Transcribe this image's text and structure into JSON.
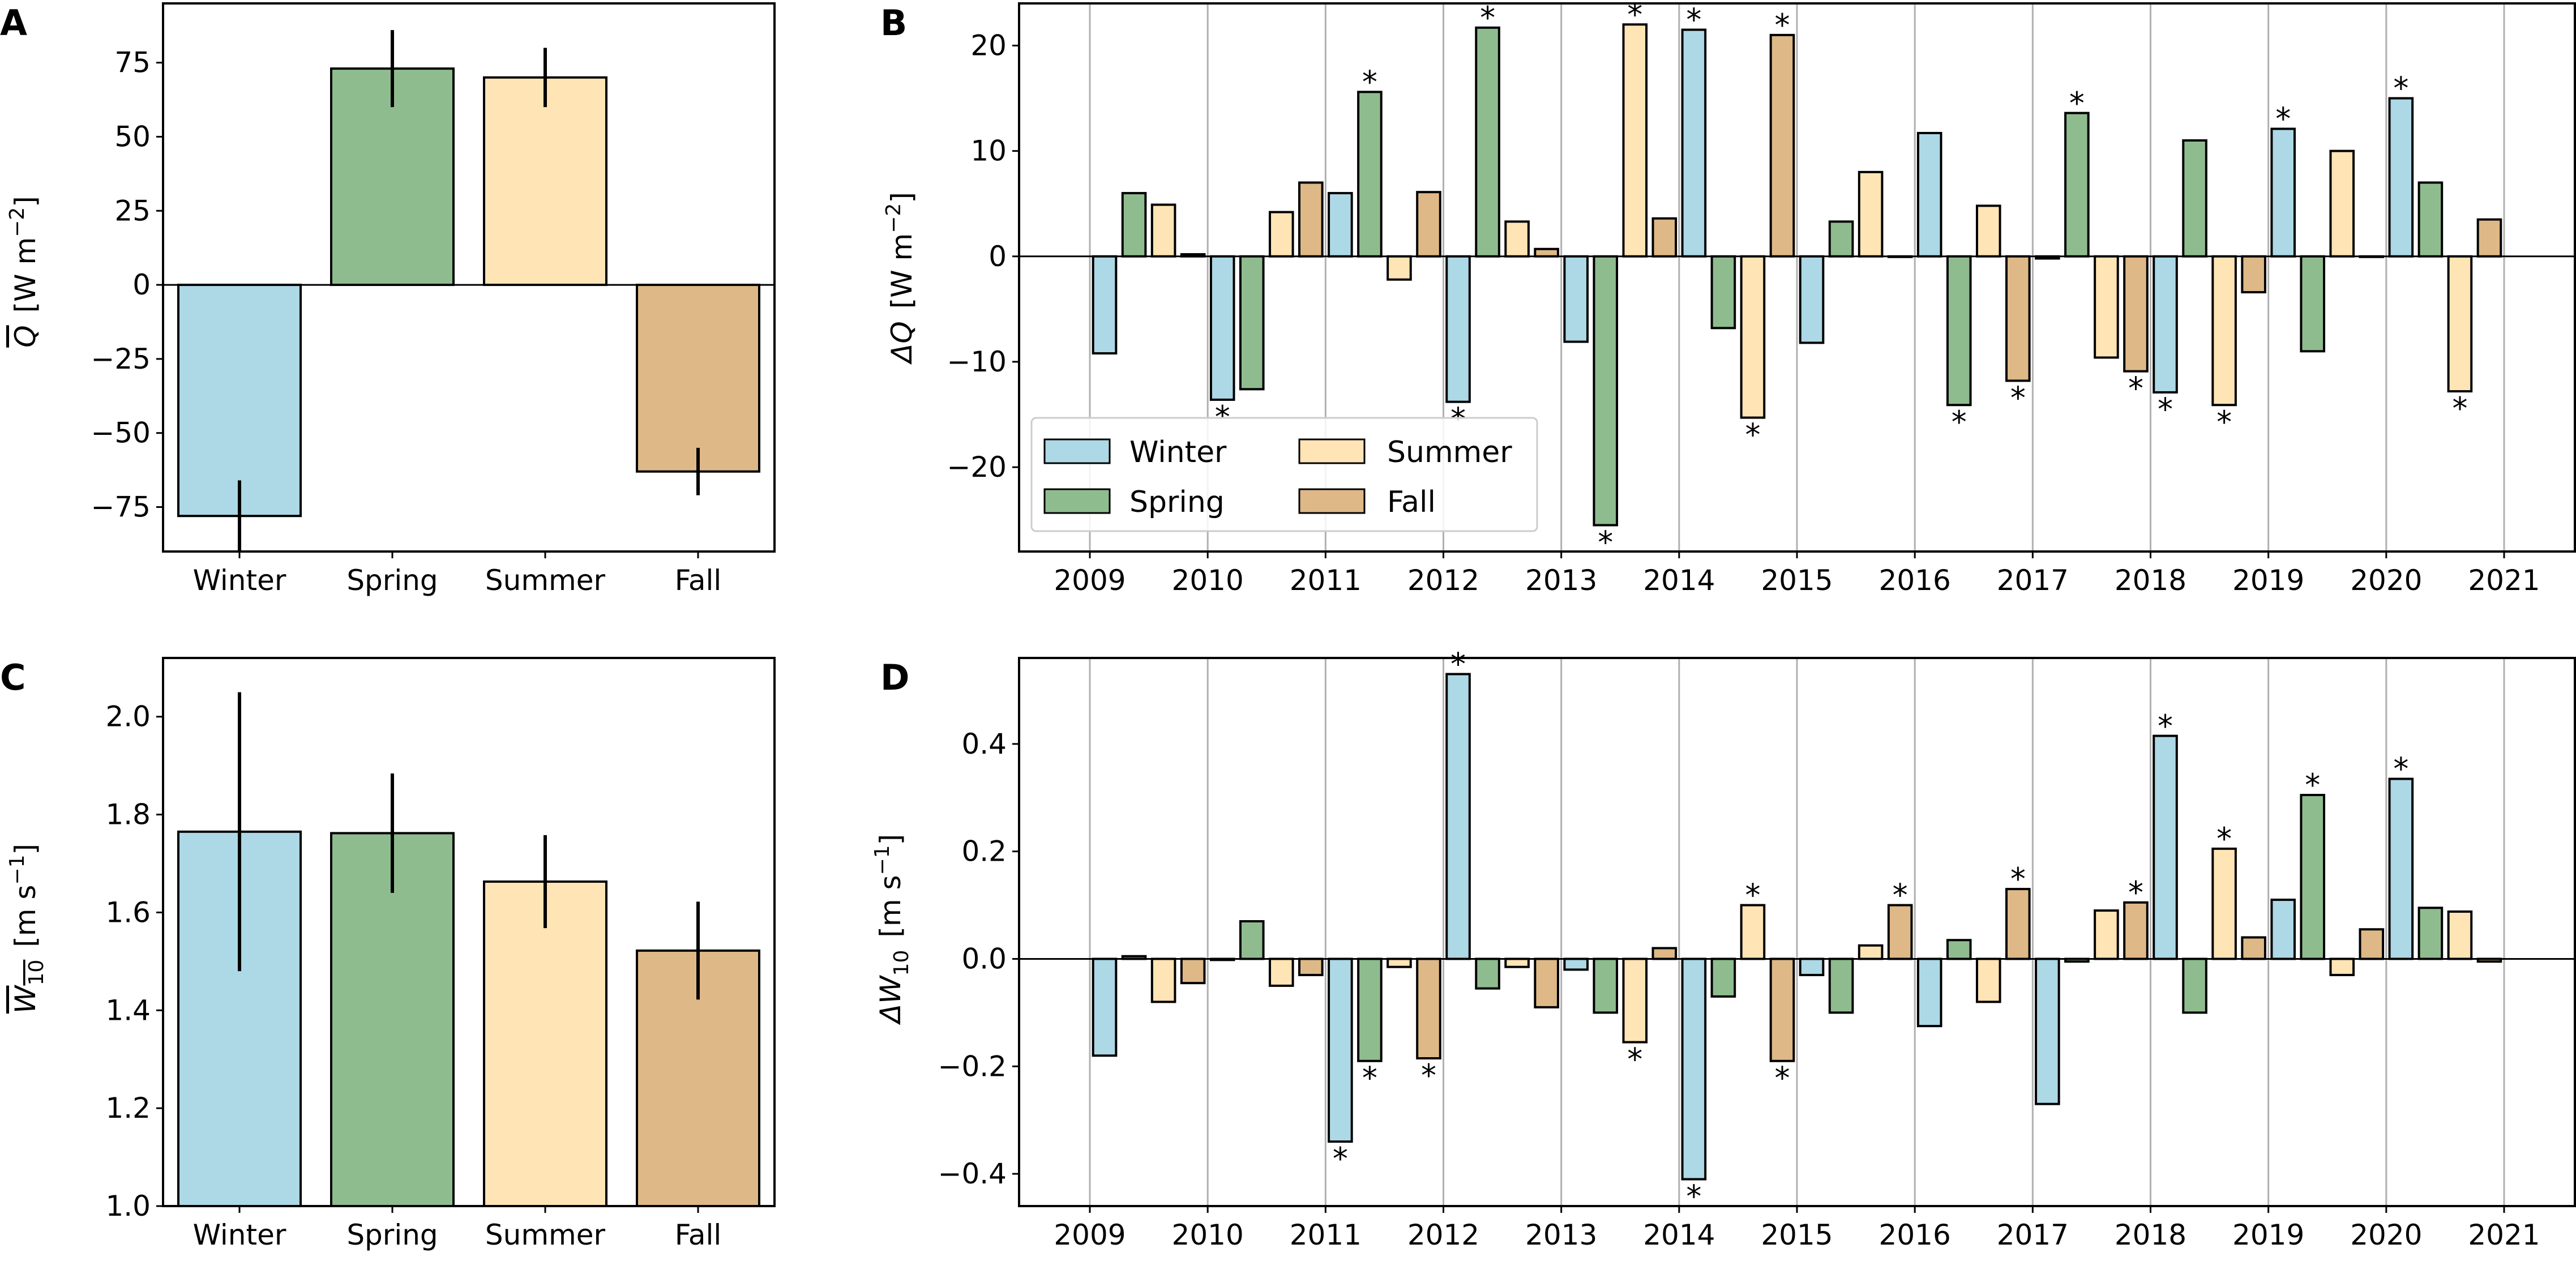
{
  "colors": {
    "Winter": "#add8e6",
    "Spring": "#8fbc8f",
    "Summer": "#ffe4b5",
    "Fall": "#deb887",
    "grid": "#b0b0b0",
    "edge": "#000000"
  },
  "chart_data": [
    {
      "panel": "A",
      "type": "bar",
      "categories": [
        "Winter",
        "Spring",
        "Summer",
        "Fall"
      ],
      "values": [
        -78,
        73,
        70,
        -63
      ],
      "errors": [
        12,
        13,
        10,
        8
      ],
      "ylabel_parts": [
        "Q",
        "[W m",
        "−2",
        "]"
      ],
      "ylim": [
        -90,
        95
      ],
      "yticks": [
        -75,
        -50,
        -25,
        0,
        25,
        50,
        75
      ],
      "ytick_labels": [
        "−75",
        "−50",
        "−25",
        "0",
        "25",
        "50",
        "75"
      ],
      "grid": false
    },
    {
      "panel": "B",
      "type": "bar",
      "series_names": [
        "Winter",
        "Spring",
        "Summer",
        "Fall"
      ],
      "years": [
        "2009",
        "2010",
        "2011",
        "2012",
        "2013",
        "2014",
        "2015",
        "2016",
        "2017",
        "2018",
        "2019",
        "2020",
        "2021"
      ],
      "values": [
        [
          -9.2,
          6.0,
          4.9,
          0.2
        ],
        [
          -13.6,
          -12.6,
          4.2,
          7.0
        ],
        [
          6.0,
          15.6,
          -2.2,
          6.1
        ],
        [
          -13.8,
          21.7,
          3.3,
          0.7
        ],
        [
          -8.1,
          -25.5,
          22.0,
          3.6
        ],
        [
          21.5,
          -6.8,
          -15.3,
          21.0
        ],
        [
          -8.2,
          3.3,
          8.0,
          0.0
        ],
        [
          11.7,
          -14.1,
          4.8,
          -11.8
        ],
        [
          -0.2,
          13.6,
          -9.6,
          -10.9
        ],
        [
          -12.9,
          11.0,
          -14.1,
          -3.4
        ],
        [
          12.1,
          -9.0,
          10.0,
          0.0
        ],
        [
          15.0,
          7.0,
          -12.8,
          3.5
        ],
        [
          0,
          0,
          0,
          0
        ]
      ],
      "significant": [
        [
          false,
          false,
          false,
          false
        ],
        [
          true,
          false,
          false,
          false
        ],
        [
          false,
          true,
          false,
          false
        ],
        [
          true,
          true,
          false,
          false
        ],
        [
          false,
          true,
          true,
          false
        ],
        [
          true,
          false,
          true,
          true
        ],
        [
          false,
          false,
          false,
          false
        ],
        [
          false,
          true,
          false,
          true
        ],
        [
          false,
          true,
          false,
          true
        ],
        [
          true,
          false,
          true,
          false
        ],
        [
          true,
          false,
          false,
          false
        ],
        [
          true,
          false,
          true,
          false
        ],
        [
          false,
          false,
          false,
          false
        ]
      ],
      "star_symbol": "*",
      "ylabel_parts": [
        "ΔQ",
        "[W m",
        "−2",
        "]"
      ],
      "ylim": [
        -28,
        24
      ],
      "yticks": [
        -20,
        -10,
        0,
        10,
        20
      ],
      "ytick_labels": [
        "−20",
        "−10",
        "0",
        "10",
        "20"
      ],
      "grid": true,
      "legend": {
        "placement": "lower-left",
        "entries": [
          "Winter",
          "Spring",
          "Summer",
          "Fall"
        ]
      }
    },
    {
      "panel": "C",
      "type": "bar",
      "categories": [
        "Winter",
        "Spring",
        "Summer",
        "Fall"
      ],
      "values": [
        1.765,
        1.762,
        1.663,
        1.522
      ],
      "errors": [
        0.285,
        0.122,
        0.095,
        0.1
      ],
      "ylabel_parts": [
        "W",
        "10",
        "[m s",
        "−1",
        "]"
      ],
      "ylim": [
        1.0,
        2.12
      ],
      "yticks": [
        1.0,
        1.2,
        1.4,
        1.6,
        1.8,
        2.0
      ],
      "ytick_labels": [
        "1.0",
        "1.2",
        "1.4",
        "1.6",
        "1.8",
        "2.0"
      ],
      "grid": false
    },
    {
      "panel": "D",
      "type": "bar",
      "series_names": [
        "Winter",
        "Spring",
        "Summer",
        "Fall"
      ],
      "years": [
        "2009",
        "2010",
        "2011",
        "2012",
        "2013",
        "2014",
        "2015",
        "2016",
        "2017",
        "2018",
        "2019",
        "2020",
        "2021"
      ],
      "values": [
        [
          -0.18,
          0.005,
          -0.08,
          -0.045
        ],
        [
          -0.002,
          0.07,
          -0.05,
          -0.03
        ],
        [
          -0.34,
          -0.19,
          -0.015,
          -0.185
        ],
        [
          0.53,
          -0.055,
          -0.015,
          -0.09
        ],
        [
          -0.02,
          -0.1,
          -0.155,
          0.02
        ],
        [
          -0.41,
          -0.07,
          0.1,
          -0.19
        ],
        [
          -0.03,
          -0.1,
          0.025,
          0.1
        ],
        [
          -0.125,
          0.035,
          -0.08,
          0.13
        ],
        [
          -0.27,
          -0.005,
          0.09,
          0.105
        ],
        [
          0.415,
          -0.1,
          0.205,
          0.04
        ],
        [
          0.11,
          0.305,
          -0.03,
          0.055
        ],
        [
          0.335,
          0.095,
          0.088,
          -0.005
        ],
        [
          0,
          0,
          0,
          0
        ]
      ],
      "significant": [
        [
          false,
          false,
          false,
          false
        ],
        [
          false,
          false,
          false,
          false
        ],
        [
          true,
          true,
          false,
          true
        ],
        [
          true,
          false,
          false,
          false
        ],
        [
          false,
          false,
          true,
          false
        ],
        [
          true,
          false,
          true,
          true
        ],
        [
          false,
          false,
          false,
          true
        ],
        [
          false,
          false,
          false,
          true
        ],
        [
          false,
          false,
          false,
          true
        ],
        [
          true,
          false,
          true,
          false
        ],
        [
          false,
          true,
          false,
          false
        ],
        [
          true,
          false,
          false,
          false
        ],
        [
          false,
          false,
          false,
          false
        ]
      ],
      "star_symbol": "*",
      "ylabel_parts": [
        "ΔW",
        "10",
        "[m s",
        "−1",
        "]"
      ],
      "ylim": [
        -0.46,
        0.56
      ],
      "yticks": [
        -0.4,
        -0.2,
        0.0,
        0.2,
        0.4
      ],
      "ytick_labels": [
        "−0.4",
        "−0.2",
        "0.0",
        "0.2",
        "0.4"
      ],
      "grid": true
    }
  ]
}
